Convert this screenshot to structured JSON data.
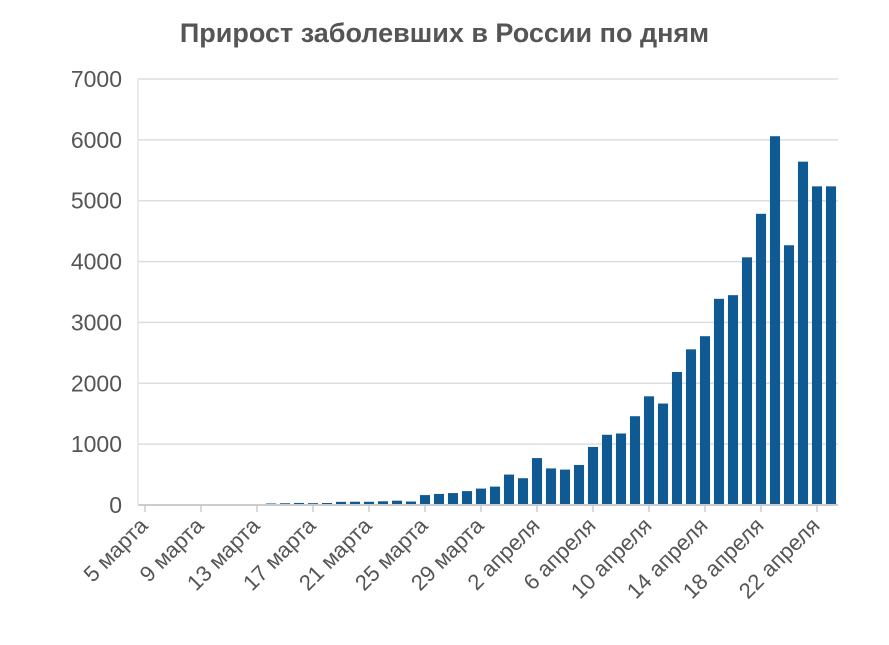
{
  "chart_data": {
    "type": "bar",
    "title": "Прирост заболевших в России по дням",
    "xlabel": "",
    "ylabel": "",
    "ylim": [
      0,
      7000
    ],
    "yticks": [
      0,
      1000,
      2000,
      3000,
      4000,
      5000,
      6000,
      7000
    ],
    "grid": true,
    "legend": "none",
    "bar_color": "#0f5a93",
    "categories": [
      "5 марта",
      "6 марта",
      "7 марта",
      "8 марта",
      "9 марта",
      "10 марта",
      "11 марта",
      "12 марта",
      "13 марта",
      "14 марта",
      "15 марта",
      "16 марта",
      "17 марта",
      "18 марта",
      "19 марта",
      "20 марта",
      "21 марта",
      "22 марта",
      "23 марта",
      "24 марта",
      "25 марта",
      "26 марта",
      "27 марта",
      "28 марта",
      "29 марта",
      "30 марта",
      "31 марта",
      "1 апреля",
      "2 апреля",
      "3 апреля",
      "4 апреля",
      "5 апреля",
      "6 апреля",
      "7 апреля",
      "8 апреля",
      "9 апреля",
      "10 апреля",
      "11 апреля",
      "12 апреля",
      "13 апреля",
      "14 апреля",
      "15 апреля",
      "16 апреля",
      "17 апреля",
      "18 апреля",
      "19 апреля",
      "20 апреля",
      "21 апреля",
      "22 апреля",
      "23 апреля"
    ],
    "tick_labels": [
      "5 марта",
      "9 марта",
      "13 марта",
      "17 марта",
      "21 марта",
      "25 марта",
      "29 марта",
      "2 апреля",
      "6 апреля",
      "10 апреля",
      "14 апреля",
      "18 апреля",
      "22 апреля"
    ],
    "values": [
      1,
      3,
      4,
      0,
      3,
      3,
      8,
      6,
      6,
      25,
      29,
      34,
      30,
      33,
      52,
      54,
      53,
      61,
      71,
      57,
      163,
      182,
      196,
      228,
      270,
      302,
      500,
      440,
      771,
      601,
      582,
      658,
      954,
      1154,
      1175,
      1459,
      1786,
      1667,
      2186,
      2558,
      2774,
      3388,
      3448,
      4070,
      4785,
      6060,
      4268,
      5642,
      5236,
      5236
    ]
  }
}
